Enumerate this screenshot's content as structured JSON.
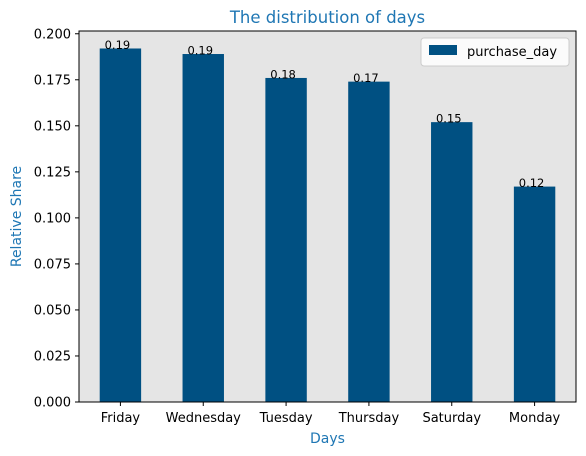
{
  "chart_data": {
    "type": "bar",
    "title": "The distribution of days",
    "xlabel": "Days",
    "ylabel": "Relative Share",
    "categories": [
      "Friday",
      "Wednesday",
      "Tuesday",
      "Thursday",
      "Saturday",
      "Monday"
    ],
    "series": [
      {
        "name": "purchase_day",
        "values": [
          0.192,
          0.189,
          0.176,
          0.174,
          0.152,
          0.117
        ]
      }
    ],
    "data_labels": [
      "0.19",
      "0.19",
      "0.18",
      "0.17",
      "0.15",
      "0.12"
    ],
    "yticks": [
      "0.000",
      "0.025",
      "0.050",
      "0.075",
      "0.100",
      "0.125",
      "0.150",
      "0.175",
      "0.200"
    ],
    "ylim": [
      0,
      0.2015
    ],
    "grid": false,
    "legend_position": "top-right",
    "colors": {
      "bar": "#005082",
      "plot_background": "#e5e5e5",
      "title": "#1f77b4",
      "axis_title": "#1f77b4",
      "axis_line": "#000000"
    }
  }
}
